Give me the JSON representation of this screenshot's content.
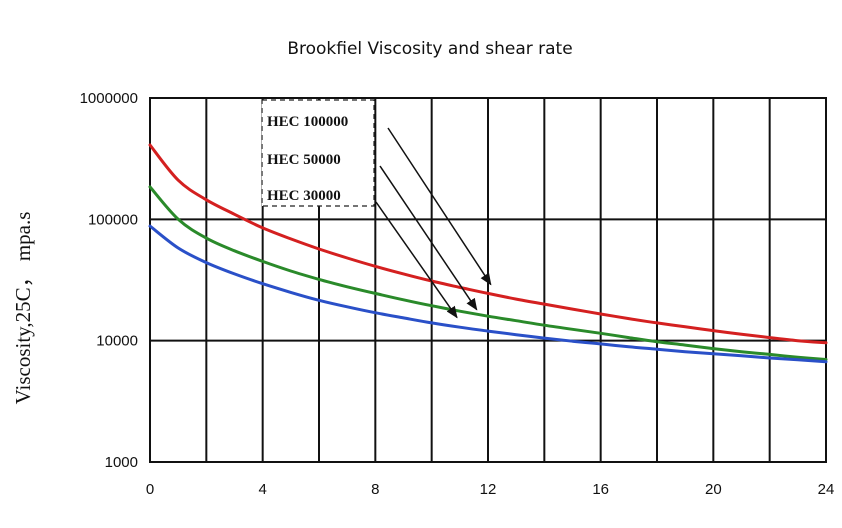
{
  "chart_data": {
    "type": "line",
    "title": "Brookfiel Viscosity and shear rate",
    "xlabel": "",
    "ylabel": "Viscosity,25C， mpa.s",
    "y_scale": "log",
    "xlim": [
      0,
      24
    ],
    "ylim": [
      1000,
      1000000
    ],
    "x_ticks": [
      0,
      4,
      8,
      12,
      16,
      20,
      24
    ],
    "x_tick_labels": [
      "0",
      "4",
      "8",
      "12",
      "16",
      "20",
      "24"
    ],
    "y_ticks": [
      1000,
      10000,
      100000,
      1000000
    ],
    "y_tick_labels": [
      "1000",
      "10000",
      "100000",
      "1000000"
    ],
    "grid": true,
    "legend_position": "top-center",
    "series": [
      {
        "name": "HEC 100000",
        "color": "#d42020",
        "x": [
          0,
          1,
          2,
          3,
          4,
          5,
          6,
          7,
          8,
          9,
          10,
          11,
          12,
          13,
          14,
          15,
          16,
          17,
          18,
          19,
          20,
          21,
          22,
          23,
          24
        ],
        "y": [
          410000,
          210000,
          145000,
          110000,
          85000,
          69000,
          57000,
          48000,
          41000,
          35500,
          31000,
          27500,
          24500,
          22000,
          20000,
          18200,
          16600,
          15200,
          14000,
          13000,
          12100,
          11300,
          10600,
          10000,
          9600
        ]
      },
      {
        "name": "HEC 50000",
        "color": "#2a8a2a",
        "x": [
          0,
          1,
          2,
          3,
          4,
          5,
          6,
          7,
          8,
          9,
          10,
          11,
          12,
          13,
          14,
          15,
          16,
          17,
          18,
          19,
          20,
          21,
          22,
          23,
          24
        ],
        "y": [
          185000,
          100000,
          70000,
          55000,
          45000,
          37500,
          32000,
          27800,
          24500,
          21700,
          19400,
          17500,
          15900,
          14600,
          13400,
          12400,
          11500,
          10600,
          9800,
          9200,
          8600,
          8100,
          7700,
          7300,
          7000
        ]
      },
      {
        "name": "HEC 30000",
        "color": "#2a50c8",
        "x": [
          0,
          1,
          2,
          3,
          4,
          5,
          6,
          7,
          8,
          9,
          10,
          11,
          12,
          13,
          14,
          15,
          16,
          17,
          18,
          19,
          20,
          21,
          22,
          23,
          24
        ],
        "y": [
          88000,
          58000,
          44000,
          35500,
          29500,
          25000,
          21500,
          19000,
          17000,
          15400,
          14000,
          12900,
          12000,
          11200,
          10500,
          9900,
          9400,
          8900,
          8500,
          8100,
          7800,
          7500,
          7200,
          6950,
          6700
        ]
      }
    ],
    "annotations": [
      {
        "label": "HEC 100000",
        "points_to_x": 12.1,
        "points_to_y": 29000
      },
      {
        "label": "HEC 50000",
        "points_to_x": 11.6,
        "points_to_y": 18000
      },
      {
        "label": "HEC 30000",
        "points_to_x": 10.9,
        "points_to_y": 15500
      }
    ]
  }
}
